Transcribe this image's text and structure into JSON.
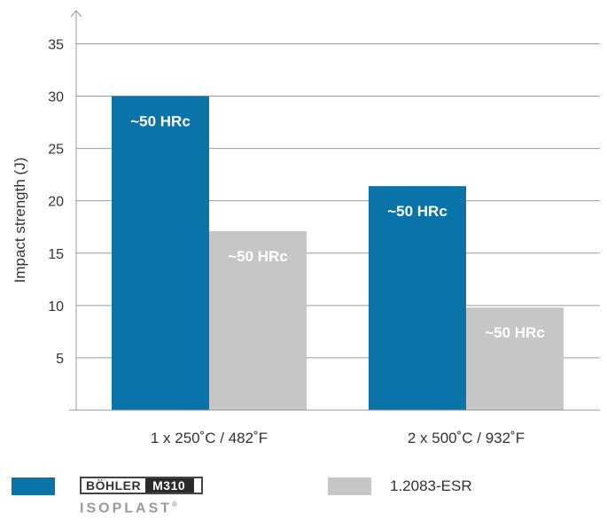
{
  "chart_data": {
    "type": "bar",
    "title": "",
    "xlabel": "",
    "ylabel": "Impact strength (J)",
    "ylim": [
      0,
      38
    ],
    "yticks": [
      5,
      10,
      15,
      20,
      25,
      30,
      35
    ],
    "grid": true,
    "categories": [
      "1 x 250˚C / 482˚F",
      "2 x 500˚C / 932˚F"
    ],
    "series": [
      {
        "name": "BÖHLER M310 ISOPLAST",
        "color": "#0a73a8",
        "values": [
          30.0,
          21.4
        ],
        "labels": [
          "~50 HRc",
          "~50 HRc"
        ]
      },
      {
        "name": "1.2083-ESR",
        "color": "#c6c6c6",
        "values": [
          17.1,
          9.8
        ],
        "labels": [
          "~50 HRc",
          "~50 HRc"
        ]
      }
    ],
    "legend_position": "bottom"
  },
  "legend": {
    "brand_part_a": "BÖHLER",
    "brand_part_b": "M310",
    "brand_sub": "ISOPLAST",
    "brand_registered": "®",
    "second_label": "1.2083-ESR"
  }
}
